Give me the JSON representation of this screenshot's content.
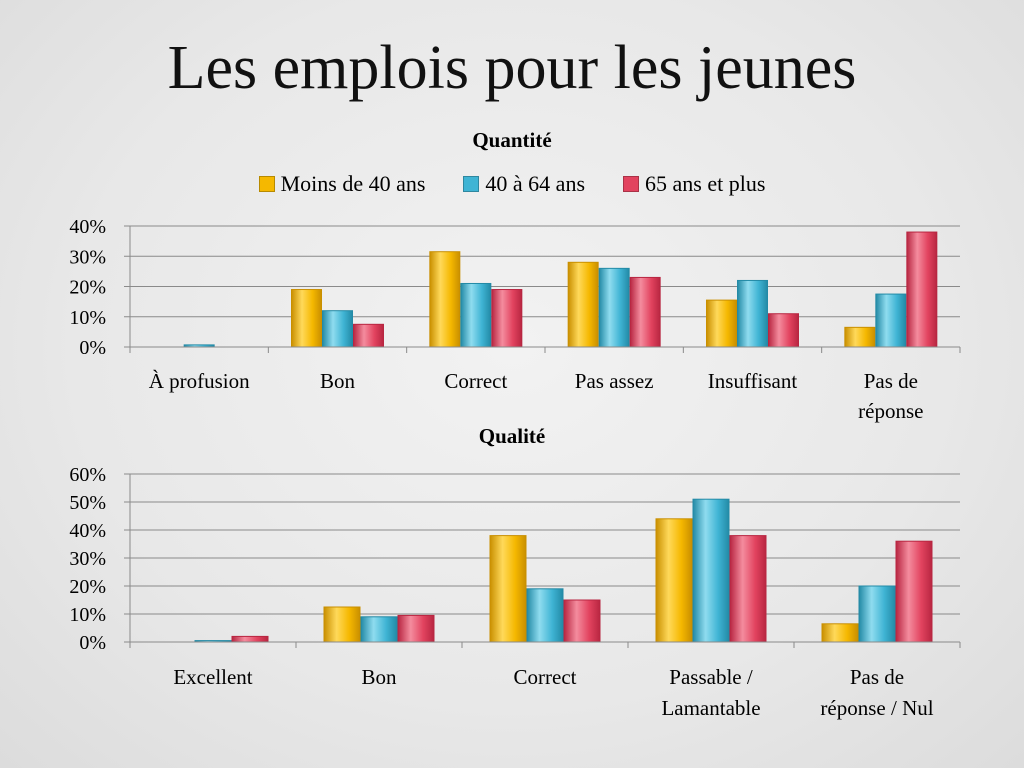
{
  "slide": {
    "title": "Les emplois pour les jeunes"
  },
  "colors": {
    "series": [
      "#f5b800",
      "#3fb4d4",
      "#e2435f"
    ],
    "series_dark": [
      "#c98f00",
      "#238aa6",
      "#b82641"
    ],
    "series_light": [
      "#ffd95a",
      "#8fdcef",
      "#f48c9e"
    ],
    "grid": "#8a8a8a"
  },
  "legend": {
    "items": [
      "Moins de 40 ans",
      "40 à 64 ans",
      "65 ans et plus"
    ],
    "placement": "top"
  },
  "chart_data": [
    {
      "type": "bar",
      "title": "Quantité",
      "categories": [
        "À profusion",
        "Bon",
        "Correct",
        "Pas assez",
        "Insuffisant",
        "Pas de réponse"
      ],
      "category_lines": [
        [
          "À profusion"
        ],
        [
          "Bon"
        ],
        [
          "Correct"
        ],
        [
          "Pas assez"
        ],
        [
          "Insuffisant"
        ],
        [
          "Pas de",
          "réponse"
        ]
      ],
      "series": [
        {
          "name": "Moins de 40 ans",
          "values": [
            0,
            19,
            31.5,
            28,
            15.5,
            6.5
          ]
        },
        {
          "name": "40 à 64 ans",
          "values": [
            0.7,
            12,
            21,
            26,
            22,
            17.5
          ]
        },
        {
          "name": "65 ans et plus",
          "values": [
            0,
            7.5,
            19,
            23,
            11,
            38
          ]
        }
      ],
      "ylim": [
        0,
        40
      ],
      "yticks": [
        "0%",
        "10%",
        "20%",
        "30%",
        "40%"
      ],
      "grid": true,
      "xlabel": "",
      "ylabel": ""
    },
    {
      "type": "bar",
      "title": "Qualité",
      "categories": [
        "Excellent",
        "Bon",
        "Correct",
        "Passable / Lamantable",
        "Pas de réponse / Nul"
      ],
      "category_lines": [
        [
          "Excellent"
        ],
        [
          "Bon"
        ],
        [
          "Correct"
        ],
        [
          "Passable /",
          "Lamantable"
        ],
        [
          "Pas de",
          "réponse / Nul"
        ]
      ],
      "series": [
        {
          "name": "Moins de 40 ans",
          "values": [
            0,
            12.5,
            38,
            44,
            6.5
          ]
        },
        {
          "name": "40 à 64 ans",
          "values": [
            0.5,
            9,
            19,
            51,
            20
          ]
        },
        {
          "name": "65 ans et plus",
          "values": [
            2,
            9.5,
            15,
            38,
            36
          ]
        }
      ],
      "ylim": [
        0,
        60
      ],
      "yticks": [
        "0%",
        "10%",
        "20%",
        "30%",
        "40%",
        "50%",
        "60%"
      ],
      "grid": true,
      "xlabel": "",
      "ylabel": ""
    }
  ]
}
